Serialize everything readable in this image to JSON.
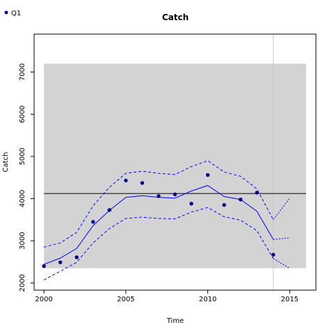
{
  "chart_data": {
    "type": "line",
    "title": "Catch",
    "xlabel": "Time",
    "ylabel": "Catch",
    "xlim": [
      1999.4,
      2016.6
    ],
    "ylim": [
      1830,
      7900
    ],
    "xticks": [
      2000,
      2005,
      2010,
      2015
    ],
    "yticks": [
      2000,
      3000,
      4000,
      5000,
      6000,
      7000
    ],
    "grid": false,
    "legend": {
      "position": "top-left",
      "entries": [
        "Q1"
      ]
    },
    "shaded_region": {
      "x": [
        2000,
        2016
      ],
      "y": [
        2350,
        7200
      ],
      "color": "#d3d3d3"
    },
    "reference_hline": {
      "y": 4120,
      "color": "#000000"
    },
    "reference_vline": {
      "x": 2014,
      "color": "#c8c8c8"
    },
    "series": [
      {
        "name": "Q1",
        "kind": "points",
        "color": "#00008b",
        "x": [
          2000,
          2001,
          2002,
          2003,
          2004,
          2005,
          2006,
          2007,
          2008,
          2009,
          2010,
          2011,
          2012,
          2013,
          2014
        ],
        "y": [
          2400,
          2490,
          2610,
          3450,
          3730,
          4430,
          4370,
          4060,
          4100,
          3880,
          4560,
          3850,
          3980,
          4140,
          2670
        ]
      },
      {
        "kind": "fit",
        "color": "#0000ff",
        "dash": "solid",
        "x": [
          2000,
          2001,
          2002,
          2003,
          2004,
          2005,
          2006,
          2007,
          2008,
          2009,
          2010,
          2011,
          2012,
          2013,
          2014
        ],
        "y": [
          2440,
          2590,
          2820,
          3360,
          3720,
          4030,
          4070,
          4030,
          4010,
          4180,
          4310,
          4050,
          3980,
          3700,
          3030
        ]
      },
      {
        "kind": "upper",
        "color": "#0000ff",
        "dash": "dashed",
        "x": [
          2000,
          2001,
          2002,
          2003,
          2004,
          2005,
          2006,
          2007,
          2008,
          2009,
          2010,
          2011,
          2012,
          2013,
          2014
        ],
        "y": [
          2850,
          2950,
          3200,
          3830,
          4270,
          4600,
          4650,
          4600,
          4570,
          4760,
          4900,
          4630,
          4530,
          4230,
          3500
        ]
      },
      {
        "kind": "lower",
        "color": "#0000ff",
        "dash": "dashed",
        "x": [
          2000,
          2001,
          2002,
          2003,
          2004,
          2005,
          2006,
          2007,
          2008,
          2009,
          2010,
          2011,
          2012,
          2013,
          2014
        ],
        "y": [
          2070,
          2280,
          2490,
          2950,
          3290,
          3530,
          3560,
          3530,
          3520,
          3680,
          3790,
          3570,
          3490,
          3240,
          2580
        ]
      },
      {
        "kind": "projection-upper",
        "color": "#0000ff",
        "dash": "dotted",
        "x": [
          2014,
          2015
        ],
        "y": [
          3500,
          4010
        ]
      },
      {
        "kind": "projection-mid",
        "color": "#0000ff",
        "dash": "dotted",
        "x": [
          2014,
          2015
        ],
        "y": [
          3030,
          3070
        ]
      },
      {
        "kind": "projection-lower",
        "color": "#0000ff",
        "dash": "dotted",
        "x": [
          2014,
          2015
        ],
        "y": [
          2580,
          2350
        ]
      }
    ]
  }
}
